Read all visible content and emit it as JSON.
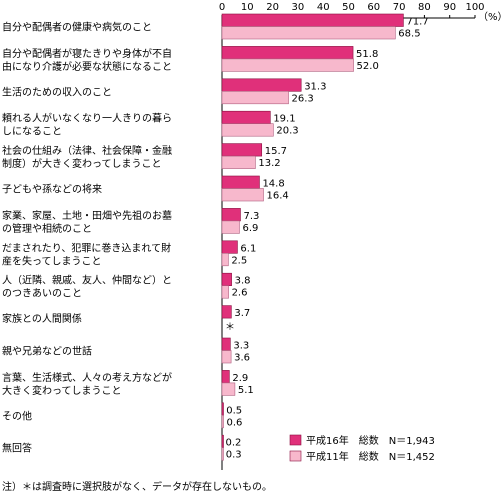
{
  "chart_data": {
    "type": "bar",
    "orientation": "horizontal",
    "unit": "（%）",
    "xlim": [
      0,
      100
    ],
    "xticks": [
      "0",
      "10",
      "20",
      "30",
      "40",
      "50",
      "60",
      "70",
      "80",
      "90",
      "100"
    ],
    "categories": [
      [
        "自分や配偶者の健康や病気のこと"
      ],
      [
        "自分や配偶者が寝たきりや身体が不自",
        "由になり介護が必要な状態になること"
      ],
      [
        "生活のための収入のこと"
      ],
      [
        "頼れる人がいなくなり一人きりの暮ら",
        "しになること"
      ],
      [
        "社会の仕組み（法律、社会保障・金融",
        "制度）が大きく変わってしまうこと"
      ],
      [
        "子どもや孫などの将来"
      ],
      [
        "家業、家屋、土地・田畑や先祖のお墓",
        "の管理や相続のこと"
      ],
      [
        "だまされたり、犯罪に巻き込まれて財",
        "産を失ってしまうこと"
      ],
      [
        "人（近隣、親戚、友人、仲間など）と",
        "のつきあいのこと"
      ],
      [
        "家族との人間関係"
      ],
      [
        "親や兄弟などの世話"
      ],
      [
        "言葉、生活様式、人々の考え方などが",
        "大きく変わってしまうこと"
      ],
      [
        "その他"
      ],
      [
        "無回答"
      ]
    ],
    "series": [
      {
        "name": "平成16年　総数　N＝1,943",
        "color": "#e0307a",
        "values": [
          71.7,
          51.8,
          31.3,
          19.1,
          15.7,
          14.8,
          7.3,
          6.1,
          3.8,
          3.7,
          3.3,
          2.9,
          0.5,
          0.2
        ],
        "labels": [
          "71.7",
          "51.8",
          "31.3",
          "19.1",
          "15.7",
          "14.8",
          "7.3",
          "6.1",
          "3.8",
          "3.7",
          "3.3",
          "2.9",
          "0.5",
          "0.2"
        ]
      },
      {
        "name": "平成11年　総数　N＝1,452",
        "color": "#f7b8cc",
        "values": [
          68.5,
          52.0,
          26.3,
          20.3,
          13.2,
          16.4,
          6.9,
          2.5,
          2.6,
          null,
          3.6,
          5.1,
          0.6,
          0.3
        ],
        "labels": [
          "68.5",
          "52.0",
          "26.3",
          "20.3",
          "13.2",
          "16.4",
          "6.9",
          "2.5",
          "2.6",
          "＊",
          "3.6",
          "5.1",
          "0.6",
          "0.3"
        ]
      }
    ],
    "note": "注）＊は調査時に選択肢がなく、データが存在しないもの。"
  }
}
